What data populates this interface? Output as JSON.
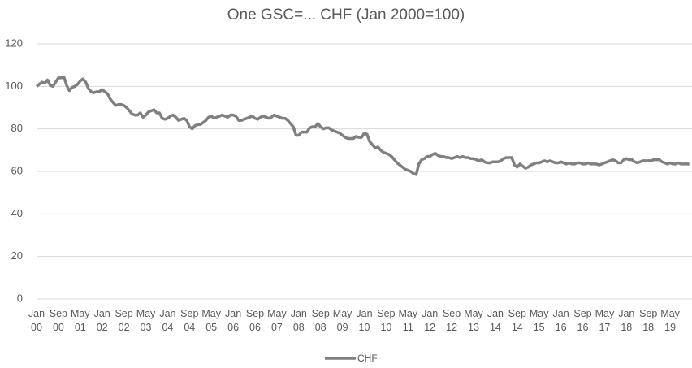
{
  "chart_data": {
    "type": "line",
    "title": "One GSC=... CHF (Jan 2000=100)",
    "categories": [
      "Jan 00",
      null,
      null,
      null,
      null,
      null,
      null,
      null,
      "Sep 00",
      null,
      null,
      null,
      null,
      null,
      null,
      null,
      "May 01",
      null,
      null,
      null,
      null,
      null,
      null,
      null,
      "Jan 02",
      null,
      null,
      null,
      null,
      null,
      null,
      null,
      "Sep 02",
      null,
      null,
      null,
      null,
      null,
      null,
      null,
      "May 03",
      null,
      null,
      null,
      null,
      null,
      null,
      null,
      "Jan 04",
      null,
      null,
      null,
      null,
      null,
      null,
      null,
      "Sep 04",
      null,
      null,
      null,
      null,
      null,
      null,
      null,
      "May 05",
      null,
      null,
      null,
      null,
      null,
      null,
      null,
      "Jan 06",
      null,
      null,
      null,
      null,
      null,
      null,
      null,
      "Sep 06",
      null,
      null,
      null,
      null,
      null,
      null,
      null,
      "May 07",
      null,
      null,
      null,
      null,
      null,
      null,
      null,
      "Jan 08",
      null,
      null,
      null,
      null,
      null,
      null,
      null,
      "Sep 08",
      null,
      null,
      null,
      null,
      null,
      null,
      null,
      "May 09",
      null,
      null,
      null,
      null,
      null,
      null,
      null,
      "Jan 10",
      null,
      null,
      null,
      null,
      null,
      null,
      null,
      "Sep 10",
      null,
      null,
      null,
      null,
      null,
      null,
      null,
      "May 11",
      null,
      null,
      null,
      null,
      null,
      null,
      null,
      "Jan 12",
      null,
      null,
      null,
      null,
      null,
      null,
      null,
      "Sep 12",
      null,
      null,
      null,
      null,
      null,
      null,
      null,
      "May 13",
      null,
      null,
      null,
      null,
      null,
      null,
      null,
      "Jan 14",
      null,
      null,
      null,
      null,
      null,
      null,
      null,
      "Sep 14",
      null,
      null,
      null,
      null,
      null,
      null,
      null,
      "May 15",
      null,
      null,
      null,
      null,
      null,
      null,
      null,
      "Jan 16",
      null,
      null,
      null,
      null,
      null,
      null,
      null,
      "Sep 16",
      null,
      null,
      null,
      null,
      null,
      null,
      null,
      "May 17",
      null,
      null,
      null,
      null,
      null,
      null,
      null,
      "Jan 18",
      null,
      null,
      null,
      null,
      null,
      null,
      null,
      "Sep 18",
      null,
      null,
      null,
      null,
      null,
      null,
      null,
      "May 19",
      null,
      null,
      null,
      null,
      null,
      null,
      null
    ],
    "series": [
      {
        "name": "CHF",
        "color": "#808080",
        "values": [
          100,
          101,
          102,
          101.5,
          103,
          100.5,
          100,
          102,
          104,
          104,
          104.5,
          100.5,
          98,
          99.5,
          100,
          101,
          102.5,
          103.5,
          102,
          99,
          97.5,
          97,
          97.5,
          97.5,
          98.5,
          97.5,
          96.5,
          94,
          92.5,
          91,
          91.5,
          91.5,
          91,
          90,
          88.5,
          87,
          86.5,
          86.5,
          87.5,
          85.5,
          86.5,
          88,
          88.5,
          89,
          87.5,
          87.5,
          85,
          84.5,
          85,
          86,
          86.5,
          85.5,
          84,
          84.5,
          85,
          84,
          81,
          80,
          81.5,
          82,
          82,
          83,
          84,
          85.5,
          86,
          85,
          85.5,
          86,
          86.5,
          86,
          85.5,
          86.5,
          86.5,
          86,
          84,
          84,
          84.5,
          85,
          85.5,
          86,
          85,
          84.5,
          85.5,
          86,
          85.5,
          85,
          85.5,
          86.5,
          86,
          85.5,
          85,
          85,
          84,
          82.5,
          81,
          77,
          77,
          78.5,
          78.5,
          78.5,
          80.5,
          81,
          81,
          82.5,
          81,
          80,
          80.5,
          80.5,
          79.5,
          79,
          78.5,
          78,
          77,
          76,
          75.5,
          75.5,
          75.5,
          76.5,
          76,
          76,
          78,
          77.5,
          74,
          72.5,
          71,
          71.5,
          70,
          69,
          68.5,
          68,
          67,
          65.5,
          64,
          63,
          62,
          61,
          60.5,
          60,
          59,
          58.5,
          63.5,
          65.5,
          66,
          67,
          67,
          68,
          68.5,
          67.5,
          67,
          67,
          66.5,
          66.5,
          66,
          66.5,
          67,
          66.5,
          67,
          66.5,
          66.5,
          66,
          66,
          65.5,
          65,
          65.5,
          64.5,
          64,
          64,
          64.5,
          64.5,
          64.5,
          65,
          66,
          66.5,
          66.5,
          66.5,
          63,
          62,
          63.5,
          62.5,
          61.5,
          62,
          63,
          63.5,
          64,
          64,
          64.5,
          65,
          64.5,
          65,
          64.5,
          64,
          64,
          64.5,
          64,
          63.5,
          64,
          63.5,
          63.5,
          64,
          64,
          63.5,
          63.5,
          64,
          63.5,
          63.5,
          63.5,
          63,
          63.5,
          64,
          64.5,
          65,
          65.5,
          65,
          64,
          64,
          65.5,
          66,
          65.5,
          65.5,
          64.5,
          64,
          64.5,
          65,
          65,
          65,
          65,
          65.5,
          65.5,
          65.5,
          64.5,
          64,
          63.5,
          64,
          63.5,
          63.5,
          64,
          63.5,
          63.5,
          63.5,
          63.5
        ]
      }
    ],
    "ylim": [
      0,
      120
    ],
    "yticks": [
      0,
      20,
      40,
      60,
      80,
      100,
      120
    ],
    "grid": true,
    "legend": "bottom"
  }
}
